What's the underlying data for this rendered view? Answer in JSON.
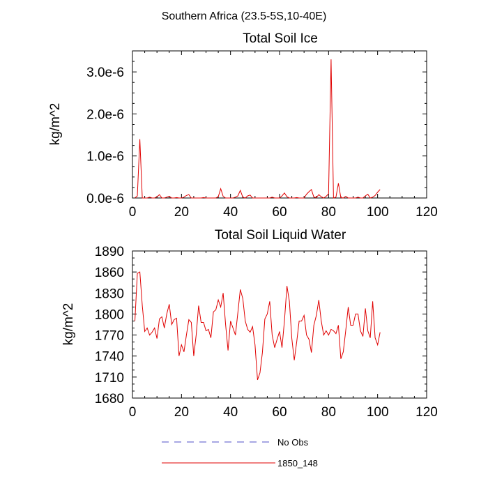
{
  "figure_title": "Southern Africa (23.5-5S,10-40E)",
  "legend": [
    {
      "label": "No Obs",
      "color": "#5050c8",
      "dashed": true
    },
    {
      "label": "1850_148",
      "color": "#e00000",
      "dashed": false
    }
  ],
  "chart_data": [
    {
      "type": "line",
      "title": "Total Soil Ice",
      "xlabel": "",
      "ylabel": "kg/m^2",
      "xlim": [
        0,
        120
      ],
      "ylim": [
        0,
        3.5e-06
      ],
      "xticks": [
        0,
        20,
        40,
        60,
        80,
        100,
        120
      ],
      "xtick_labels": [
        "0",
        "20",
        "40",
        "60",
        "80",
        "100",
        "120"
      ],
      "yticks": [
        0,
        1e-06,
        2e-06,
        3e-06
      ],
      "ytick_labels": [
        "0.0e-6",
        "1.0e-6",
        "2.0e-6",
        "3.0e-6"
      ],
      "series": [
        {
          "name": "1850_148",
          "color": "#e00000",
          "x": [
            1,
            2,
            3,
            4,
            5,
            6,
            7,
            8,
            9,
            10,
            11,
            12,
            13,
            14,
            15,
            16,
            17,
            18,
            19,
            20,
            21,
            22,
            23,
            24,
            25,
            26,
            27,
            28,
            29,
            30,
            31,
            32,
            33,
            34,
            35,
            36,
            37,
            38,
            39,
            40,
            41,
            42,
            43,
            44,
            45,
            46,
            47,
            48,
            49,
            50,
            51,
            52,
            53,
            54,
            55,
            56,
            57,
            58,
            59,
            60,
            61,
            62,
            63,
            64,
            65,
            66,
            67,
            68,
            69,
            70,
            71,
            72,
            73,
            74,
            75,
            76,
            77,
            78,
            79,
            80,
            81,
            82,
            83,
            84,
            85,
            86,
            87,
            88,
            89,
            90,
            91,
            92,
            93,
            94,
            95,
            96,
            97,
            98,
            99,
            100,
            101
          ],
          "values": [
            0,
            5e-08,
            1.4e-06,
            0,
            0,
            0,
            2e-08,
            0,
            0,
            3e-08,
            8e-08,
            0,
            0,
            2e-08,
            4e-08,
            0,
            0,
            1e-08,
            0,
            0,
            2e-08,
            6e-08,
            8e-08,
            0,
            0,
            0,
            0,
            0,
            1e-08,
            0,
            0,
            0,
            0,
            0,
            3e-08,
            2.2e-07,
            4e-08,
            0,
            0,
            0,
            0,
            2e-08,
            5e-08,
            1.8e-07,
            2e-08,
            0,
            5e-08,
            7e-08,
            0,
            0,
            0,
            0,
            0,
            0,
            0,
            0,
            2e-08,
            0,
            0,
            0,
            5e-08,
            1.2e-07,
            3e-08,
            0,
            0,
            0,
            1e-08,
            0,
            0,
            0,
            9e-08,
            1.5e-07,
            2e-07,
            2e-08,
            1e-08,
            8e-08,
            3e-08,
            0,
            4e-08,
            1e-07,
            3.3e-06,
            0,
            2e-08,
            3.5e-07,
            1e-08,
            0,
            4e-08,
            0,
            0,
            0,
            0,
            2e-08,
            0,
            0,
            5e-08,
            9e-08,
            0,
            2e-08,
            6e-08,
            1.4e-07,
            2e-07
          ]
        }
      ]
    },
    {
      "type": "line",
      "title": "Total Soil Liquid Water",
      "xlabel": "",
      "ylabel": "kg/m^2",
      "xlim": [
        0,
        120
      ],
      "ylim": [
        1680,
        1890
      ],
      "xticks": [
        0,
        20,
        40,
        60,
        80,
        100,
        120
      ],
      "xtick_labels": [
        "0",
        "20",
        "40",
        "60",
        "80",
        "100",
        "120"
      ],
      "yticks": [
        1680,
        1710,
        1740,
        1770,
        1800,
        1830,
        1860,
        1890
      ],
      "ytick_labels": [
        "1680",
        "1710",
        "1740",
        "1770",
        "1800",
        "1830",
        "1860",
        "1890"
      ],
      "series": [
        {
          "name": "1850_148",
          "color": "#e00000",
          "x": [
            1,
            2,
            3,
            4,
            5,
            6,
            7,
            8,
            9,
            10,
            11,
            12,
            13,
            14,
            15,
            16,
            17,
            18,
            19,
            20,
            21,
            22,
            23,
            24,
            25,
            26,
            27,
            28,
            29,
            30,
            31,
            32,
            33,
            34,
            35,
            36,
            37,
            38,
            39,
            40,
            41,
            42,
            43,
            44,
            45,
            46,
            47,
            48,
            49,
            50,
            51,
            52,
            53,
            54,
            55,
            56,
            57,
            58,
            59,
            60,
            61,
            62,
            63,
            64,
            65,
            66,
            67,
            68,
            69,
            70,
            71,
            72,
            73,
            74,
            75,
            76,
            77,
            78,
            79,
            80,
            81,
            82,
            83,
            84,
            85,
            86,
            87,
            88,
            89,
            90,
            91,
            92,
            93,
            94,
            95,
            96,
            97,
            98,
            99,
            100,
            101
          ],
          "values": [
            1790,
            1858,
            1860,
            1812,
            1775,
            1780,
            1770,
            1774,
            1780,
            1765,
            1793,
            1796,
            1780,
            1800,
            1814,
            1785,
            1792,
            1794,
            1740,
            1756,
            1746,
            1770,
            1792,
            1788,
            1740,
            1770,
            1812,
            1788,
            1788,
            1776,
            1778,
            1766,
            1803,
            1806,
            1820,
            1810,
            1830,
            1785,
            1748,
            1790,
            1780,
            1770,
            1802,
            1835,
            1822,
            1790,
            1778,
            1774,
            1782,
            1756,
            1706,
            1716,
            1745,
            1793,
            1800,
            1818,
            1770,
            1752,
            1764,
            1775,
            1752,
            1790,
            1840,
            1818,
            1765,
            1734,
            1760,
            1790,
            1790,
            1798,
            1770,
            1764,
            1745,
            1784,
            1798,
            1820,
            1790,
            1770,
            1776,
            1770,
            1778,
            1776,
            1772,
            1784,
            1736,
            1746,
            1776,
            1810,
            1784,
            1784,
            1800,
            1800,
            1776,
            1768,
            1808,
            1776,
            1766,
            1818,
            1766,
            1756,
            1774
          ]
        }
      ]
    }
  ]
}
